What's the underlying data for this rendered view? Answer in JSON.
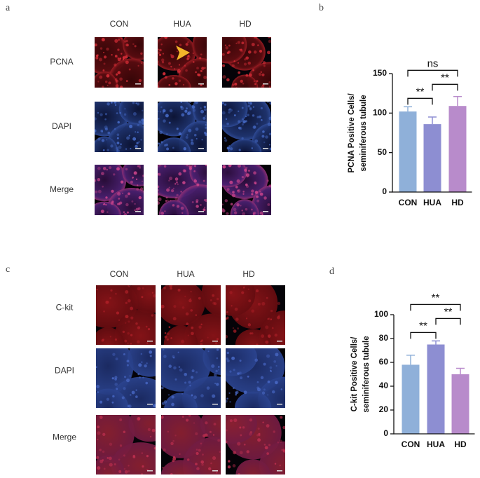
{
  "panels": [
    {
      "label": "a",
      "columns": [
        "CON",
        "HUA",
        "HD"
      ],
      "rows": [
        "PCNA",
        "DAPI",
        "Merge"
      ]
    },
    {
      "label": "c",
      "columns": [
        "CON",
        "HUA",
        "HD"
      ],
      "rows": [
        "C-kit",
        "DAPI",
        "Merge"
      ]
    }
  ],
  "chart_data": [
    {
      "type": "bar",
      "panel_label": "b",
      "y_label": [
        "PCNA Positive Cells/",
        "seminiferous tubule"
      ],
      "categories": [
        "CON",
        "HUA",
        "HD"
      ],
      "values": [
        102,
        86,
        109
      ],
      "errors": [
        6,
        9,
        12
      ],
      "colors": [
        "#8fb0d9",
        "#8d8ed2",
        "#b88bcb"
      ],
      "ylim": [
        0,
        150
      ],
      "yticks": [
        0,
        50,
        100,
        150
      ],
      "brackets": [
        {
          "between": [
            "CON",
            "HUA"
          ],
          "label": "**"
        },
        {
          "between": [
            "HUA",
            "HD"
          ],
          "label": "**"
        },
        {
          "between": [
            "CON",
            "HD"
          ],
          "label": "ns"
        }
      ]
    },
    {
      "type": "bar",
      "panel_label": "d",
      "y_label": [
        "C-kit Positive Cells/",
        "seminiferous tubule"
      ],
      "categories": [
        "CON",
        "HUA",
        "HD"
      ],
      "values": [
        58,
        75,
        50
      ],
      "errors": [
        8,
        3,
        5
      ],
      "colors": [
        "#8fb0d9",
        "#8d8ed2",
        "#b88bcb"
      ],
      "ylim": [
        0,
        100
      ],
      "yticks": [
        0,
        20,
        40,
        60,
        80,
        100
      ],
      "brackets": [
        {
          "between": [
            "CON",
            "HUA"
          ],
          "label": "**"
        },
        {
          "between": [
            "HUA",
            "HD"
          ],
          "label": "**"
        },
        {
          "between": [
            "CON",
            "HD"
          ],
          "label": "**"
        }
      ]
    }
  ]
}
